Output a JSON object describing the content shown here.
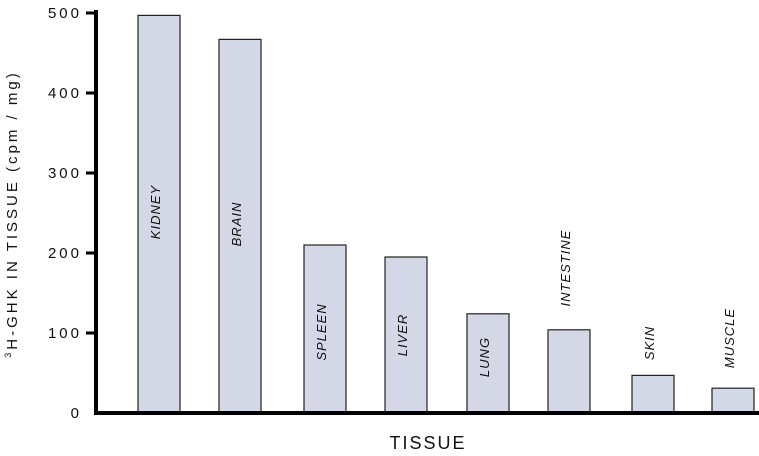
{
  "chart_data": {
    "type": "bar",
    "categories": [
      "KIDNEY",
      "BRAIN",
      "SPLEEN",
      "LIVER",
      "LUNG",
      "INTESTINE",
      "SKIN",
      "MUSCLE"
    ],
    "values": [
      497,
      467,
      210,
      195,
      124,
      104,
      47,
      31
    ],
    "xlabel": "TISSUE",
    "ylabel": "H-GHK IN TISSUE (cpm / mg)",
    "ylabel_superscript": "3",
    "yticks": [
      "0",
      "100",
      "200",
      "300",
      "400",
      "500"
    ],
    "ylim": [
      0,
      500
    ],
    "bar_color": "#d3d7e6",
    "bar_stroke": "#222222",
    "grid": false,
    "legend": "none"
  }
}
